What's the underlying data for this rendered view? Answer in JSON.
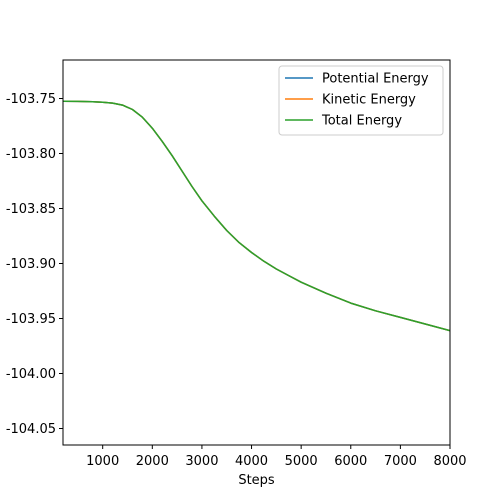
{
  "chart_data": {
    "type": "line",
    "title": "",
    "xlabel": "Steps",
    "ylabel": "",
    "xlim": [
      200,
      8000
    ],
    "ylim": [
      -104.065,
      -103.715
    ],
    "x_ticks": [
      1000,
      2000,
      3000,
      4000,
      5000,
      6000,
      7000,
      8000
    ],
    "x_tick_labels": [
      "1000",
      "2000",
      "3000",
      "4000",
      "5000",
      "6000",
      "7000",
      "8000"
    ],
    "y_ticks": [
      -104.05,
      -104.0,
      -103.95,
      -103.9,
      -103.85,
      -103.8,
      -103.75
    ],
    "y_tick_labels": [
      "-104.05",
      "-104.00",
      "-103.95",
      "-103.90",
      "-103.85",
      "-103.80",
      "-103.75"
    ],
    "grid": false,
    "legend_position": "top-right",
    "x": [
      200,
      500,
      800,
      1000,
      1200,
      1400,
      1600,
      1800,
      2000,
      2200,
      2400,
      2600,
      2800,
      3000,
      3250,
      3500,
      3750,
      4000,
      4250,
      4500,
      4750,
      5000,
      5500,
      6000,
      6500,
      7000,
      7500,
      8000
    ],
    "series": [
      {
        "name": "Potential Energy",
        "color": "#1f77b4",
        "values": [
          -103.7525,
          -103.7526,
          -103.7529,
          -103.7534,
          -103.7542,
          -103.756,
          -103.76,
          -103.767,
          -103.777,
          -103.789,
          -103.802,
          -103.816,
          -103.83,
          -103.843,
          -103.857,
          -103.87,
          -103.881,
          -103.89,
          -103.898,
          -103.905,
          -103.911,
          -103.917,
          -103.927,
          -103.936,
          -103.943,
          -103.949,
          -103.955,
          -103.961
        ]
      },
      {
        "name": "Kinetic Energy",
        "color": "#ff7f0e",
        "values": [
          -103.7525,
          -103.7526,
          -103.7529,
          -103.7534,
          -103.7542,
          -103.756,
          -103.76,
          -103.767,
          -103.777,
          -103.789,
          -103.802,
          -103.816,
          -103.83,
          -103.843,
          -103.857,
          -103.87,
          -103.881,
          -103.89,
          -103.898,
          -103.905,
          -103.911,
          -103.917,
          -103.927,
          -103.936,
          -103.943,
          -103.949,
          -103.955,
          -103.961
        ]
      },
      {
        "name": "Total Energy",
        "color": "#2ca02c",
        "values": [
          -103.7525,
          -103.7526,
          -103.7529,
          -103.7534,
          -103.7542,
          -103.756,
          -103.76,
          -103.767,
          -103.777,
          -103.789,
          -103.802,
          -103.816,
          -103.83,
          -103.843,
          -103.857,
          -103.87,
          -103.881,
          -103.89,
          -103.898,
          -103.905,
          -103.911,
          -103.917,
          -103.927,
          -103.936,
          -103.943,
          -103.949,
          -103.955,
          -103.961
        ]
      }
    ]
  }
}
